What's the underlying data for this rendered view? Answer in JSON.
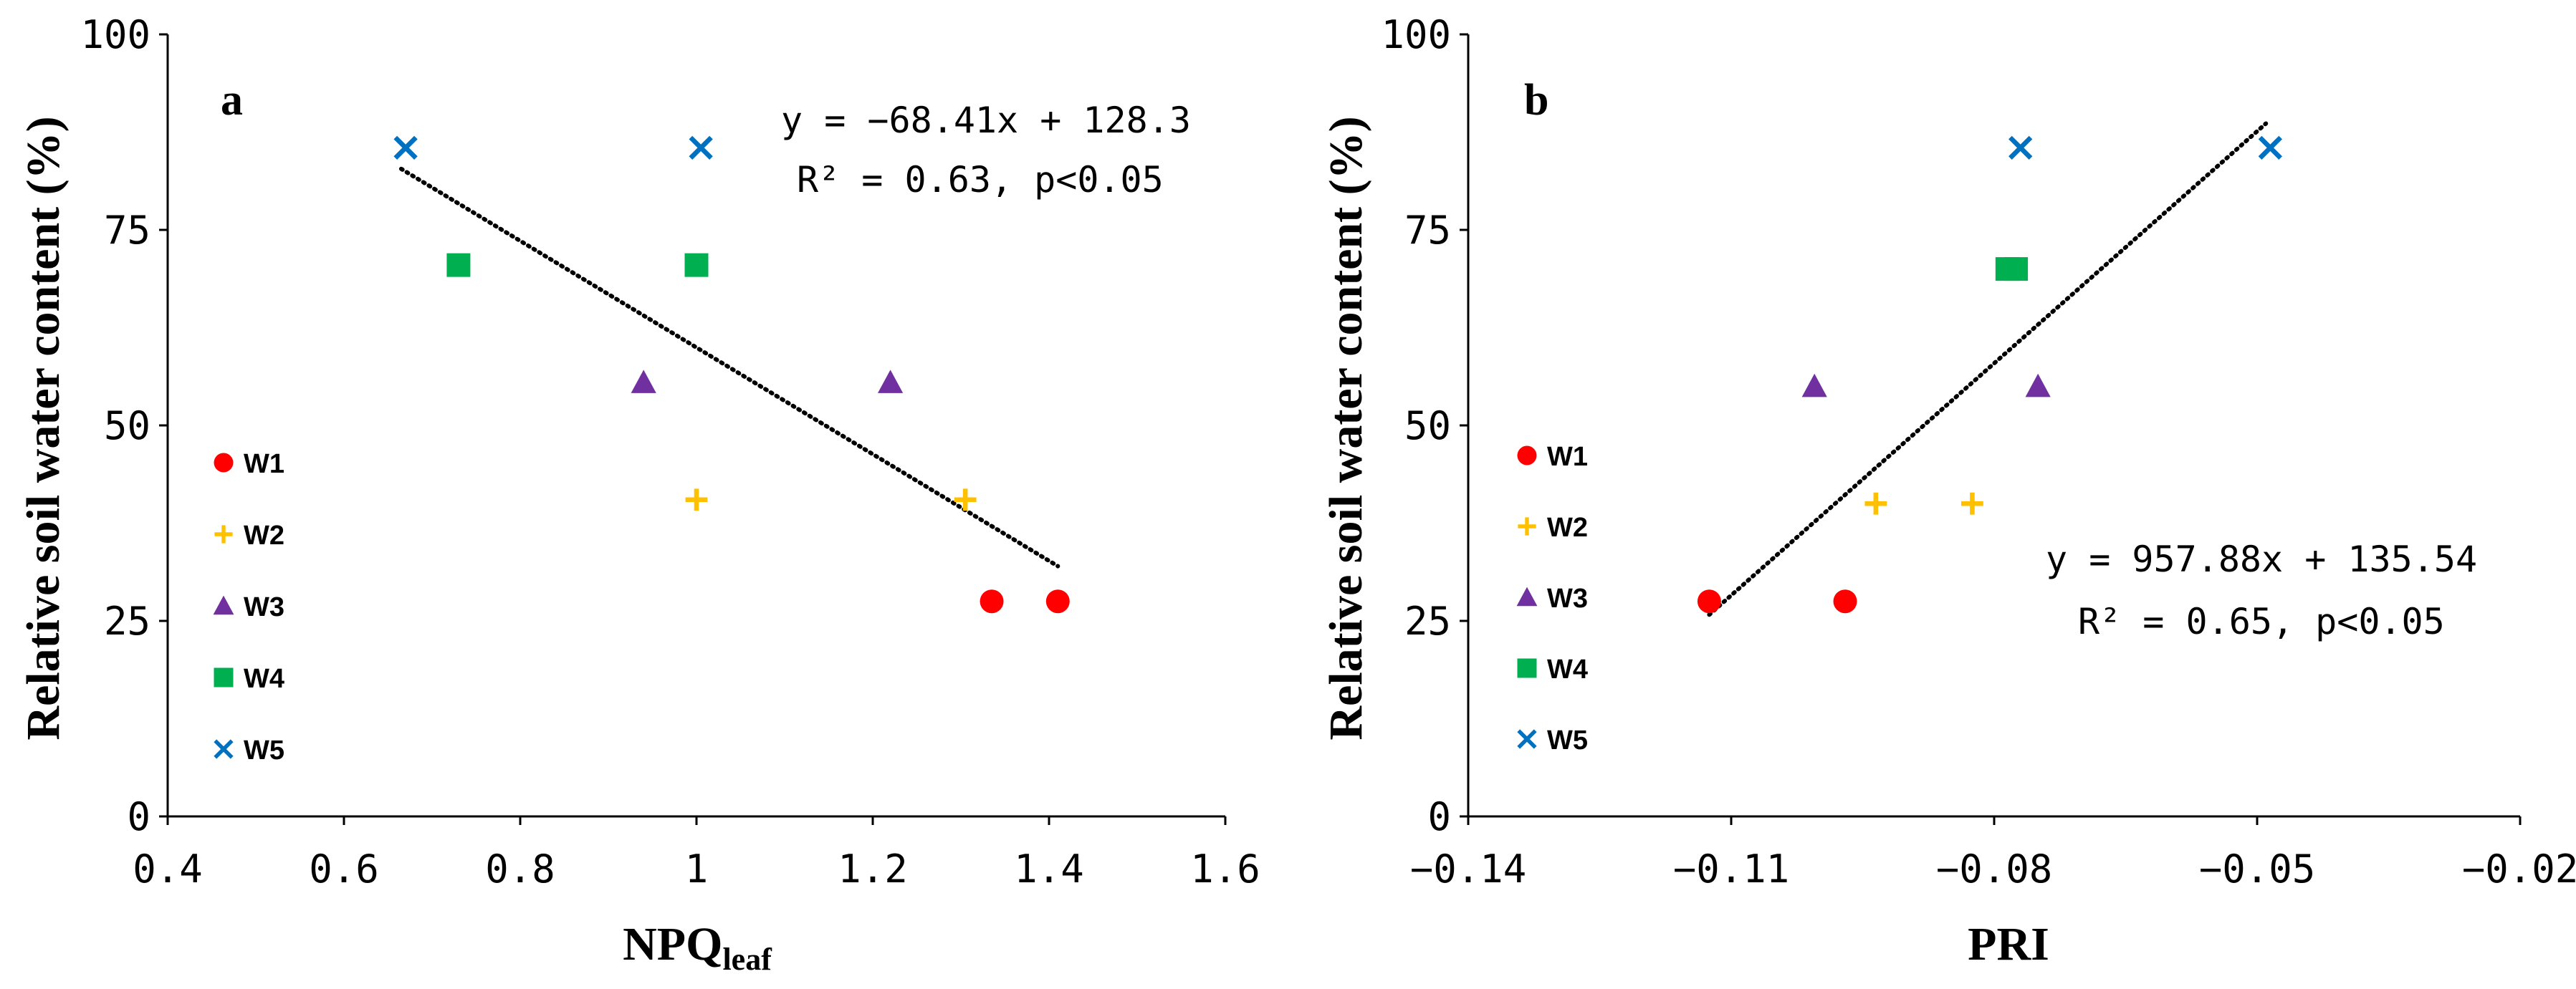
{
  "colors": {
    "W1": "#ff0000",
    "W2": "#ffc000",
    "W3": "#7030a0",
    "W4": "#00b050",
    "W5": "#0070c0",
    "axis": "#000000",
    "trend": "#000000"
  },
  "legend": [
    {
      "label": "W1",
      "marker": "circle"
    },
    {
      "label": "W2",
      "marker": "plus"
    },
    {
      "label": "W3",
      "marker": "triangle"
    },
    {
      "label": "W4",
      "marker": "square"
    },
    {
      "label": "W5",
      "marker": "cross"
    }
  ],
  "chart_data": [
    {
      "type": "scatter",
      "panel_label": "a",
      "xlabel_main": "NPQ",
      "xlabel_sub": "leaf",
      "ylabel": "Relative soil water content (%)",
      "xlim": [
        0.4,
        1.6
      ],
      "ylim": [
        0,
        100
      ],
      "xticks": [
        0.4,
        0.6,
        0.8,
        1.0,
        1.2,
        1.4,
        1.6
      ],
      "xtick_labels": [
        "0.4",
        "0.6",
        "0.8",
        "1",
        "1.2",
        "1.4",
        "1.6"
      ],
      "yticks": [
        0,
        25,
        50,
        75,
        100
      ],
      "ytick_labels": [
        "0",
        "25",
        "50",
        "75",
        "100"
      ],
      "series": [
        {
          "name": "W1",
          "marker": "circle",
          "points": [
            [
              1.335,
              27.5
            ],
            [
              1.41,
              27.5
            ]
          ]
        },
        {
          "name": "W2",
          "marker": "plus",
          "points": [
            [
              1.0,
              40.5
            ],
            [
              1.305,
              40.5
            ]
          ]
        },
        {
          "name": "W3",
          "marker": "triangle",
          "points": [
            [
              0.94,
              55.5
            ],
            [
              1.22,
              55.5
            ]
          ]
        },
        {
          "name": "W4",
          "marker": "square",
          "points": [
            [
              0.73,
              70.5
            ],
            [
              1.0,
              70.5
            ]
          ]
        },
        {
          "name": "W5",
          "marker": "cross",
          "points": [
            [
              0.67,
              85.5
            ],
            [
              1.005,
              85.5
            ]
          ]
        }
      ],
      "trendline": {
        "x": [
          0.665,
          1.41
        ],
        "y": [
          82.8,
          32.0
        ],
        "style": "dotted"
      },
      "equation": "y = −68.41x + 128.3",
      "r2_text": "R² = 0.63, p<0.05",
      "legend_position": "left"
    },
    {
      "type": "scatter",
      "panel_label": "b",
      "xlabel_main": "PRI",
      "xlabel_sub": "",
      "ylabel": "Relative soil water content (%)",
      "xlim": [
        -0.14,
        -0.02
      ],
      "ylim": [
        0,
        100
      ],
      "xticks": [
        -0.14,
        -0.11,
        -0.08,
        -0.05,
        -0.02
      ],
      "xtick_labels": [
        "−0.14",
        "−0.11",
        "−0.08",
        "−0.05",
        "−0.02"
      ],
      "yticks": [
        0,
        25,
        50,
        75,
        100
      ],
      "ytick_labels": [
        "0",
        "25",
        "50",
        "75",
        "100"
      ],
      "series": [
        {
          "name": "W1",
          "marker": "circle",
          "points": [
            [
              -0.1125,
              27.5
            ],
            [
              -0.097,
              27.5
            ]
          ]
        },
        {
          "name": "W2",
          "marker": "plus",
          "points": [
            [
              -0.0935,
              40.0
            ],
            [
              -0.0825,
              40.0
            ]
          ]
        },
        {
          "name": "W3",
          "marker": "triangle",
          "points": [
            [
              -0.1005,
              55.0
            ],
            [
              -0.075,
              55.0
            ]
          ]
        },
        {
          "name": "W4",
          "marker": "square",
          "points": [
            [
              -0.0785,
              70.0
            ],
            [
              -0.0775,
              70.0
            ]
          ]
        },
        {
          "name": "W5",
          "marker": "cross",
          "points": [
            [
              -0.077,
              85.5
            ],
            [
              -0.0485,
              85.5
            ]
          ]
        }
      ],
      "trendline": {
        "x": [
          -0.1125,
          -0.049
        ],
        "y": [
          25.8,
          88.6
        ],
        "style": "dotted"
      },
      "equation": "y = 957.88x + 135.54",
      "r2_text": "R² = 0.65, p<0.05",
      "legend_position": "left"
    }
  ]
}
